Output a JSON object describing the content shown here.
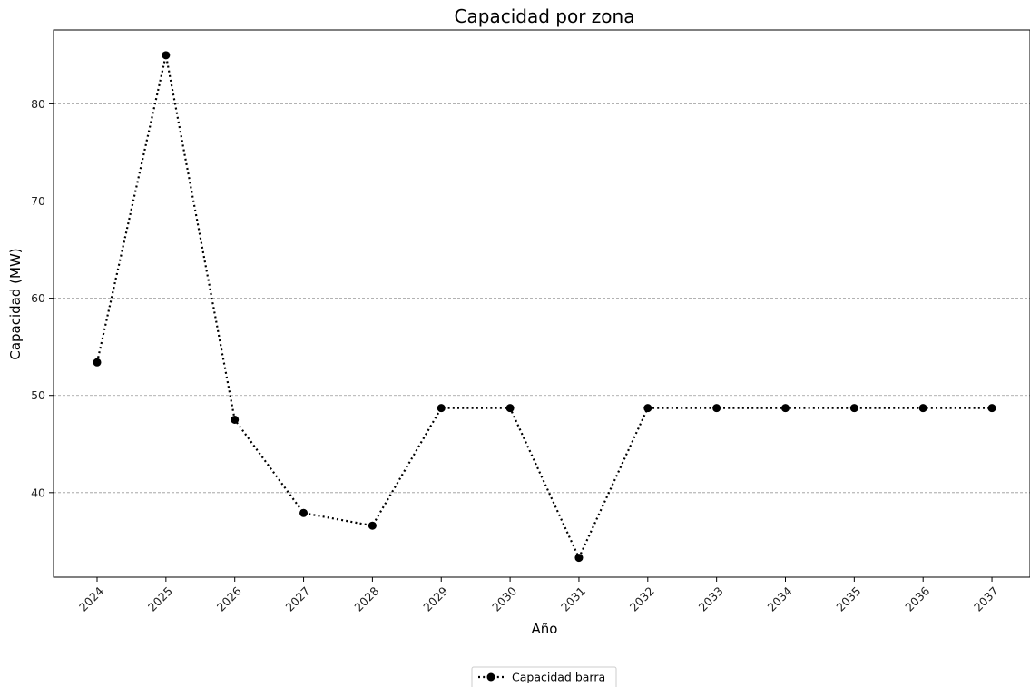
{
  "chart_data": {
    "type": "line",
    "title": "Capacidad por zona",
    "xlabel": "Año",
    "ylabel": "Capacidad (MW)",
    "categories": [
      "2024",
      "2025",
      "2026",
      "2027",
      "2028",
      "2029",
      "2030",
      "2031",
      "2032",
      "2033",
      "2034",
      "2035",
      "2036",
      "2037"
    ],
    "series": [
      {
        "name": "Capacidad barra",
        "values": [
          53.4,
          85.0,
          47.5,
          37.9,
          36.6,
          48.7,
          48.7,
          33.3,
          48.7,
          48.7,
          48.7,
          48.7,
          48.7,
          48.7
        ],
        "color": "#000000",
        "line_style": "dotted",
        "marker": "circle"
      }
    ],
    "ylim": [
      31.3,
      87.6
    ],
    "yticks": [
      40,
      50,
      60,
      70,
      80
    ],
    "grid": "horizontal dashed",
    "legend_position": "bottom-center"
  }
}
